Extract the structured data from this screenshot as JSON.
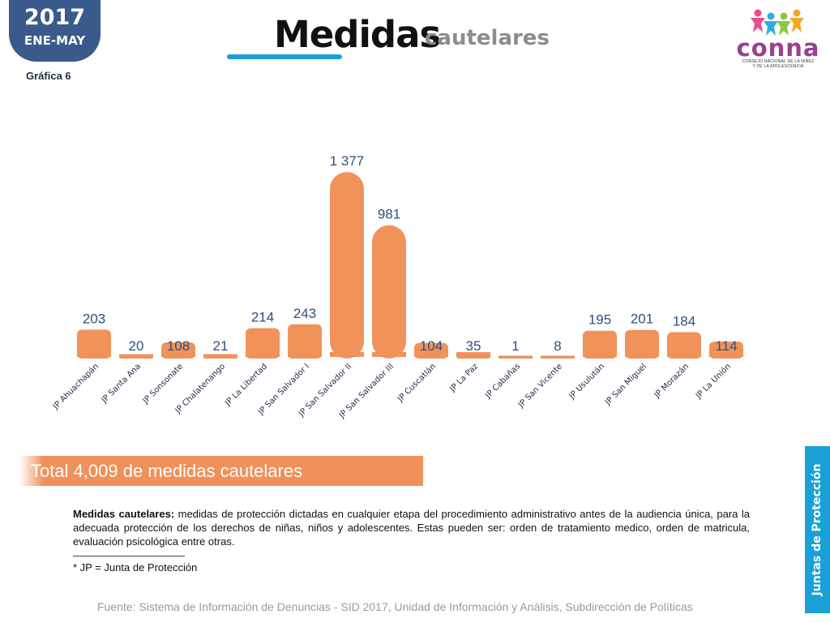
{
  "badge": {
    "year": "2017",
    "period": "ENE-MAY"
  },
  "grafica": "Gráfica 6",
  "title": {
    "main": "Medidas",
    "sub": "cautelares"
  },
  "logo": {
    "word": "conna",
    "line1": "CONSEJO NACIONAL DE LA NIÑEZ",
    "line2": "Y DE LA ADOLESCENCIA",
    "colors": [
      "#e84f8b",
      "#2eaee0",
      "#8dc63f",
      "#f5a623"
    ]
  },
  "chart_data": {
    "type": "bar",
    "categories": [
      "JP Ahuachapán",
      "JP Santa Ana",
      "JP Sonsonate",
      "JP Chalatenango",
      "JP La Libertad",
      "JP San Salvador I",
      "JP San Salvador II",
      "JP San Salvador III",
      "JP Cuscatlán",
      "JP La Paz",
      "JP Cabañas",
      "JP San Vicente",
      "JP Usulután",
      "JP San Miguel",
      "JP Morazán",
      "JP La Unión"
    ],
    "values": [
      203,
      20,
      108,
      21,
      214,
      243,
      1377,
      981,
      104,
      35,
      1,
      8,
      195,
      201,
      184,
      114
    ],
    "value_labels": [
      "203",
      "20",
      "108",
      "21",
      "214",
      "243",
      "1 377",
      "981",
      "104",
      "35",
      "1",
      "8",
      "195",
      "201",
      "184",
      "114"
    ],
    "bar_color": "#f0925a",
    "label_color": "#2f4f7f",
    "ylim": [
      0,
      1450
    ],
    "grid": false
  },
  "total": "Total 4,009 de medidas cautelares",
  "note": {
    "term": "Medidas cautelares:",
    "text": " medidas de protección dictadas en cualquier etapa del procedimiento administrativo antes de la audiencia única, para la adecuada protección de los derechos de niñas, niños y adolescentes. Estas pueden ser: orden de tratamiento medico, orden de matricula, evaluación psicológica entre otras."
  },
  "footnote": "* JP = Junta de Protección",
  "source": "Fuente: Sistema de Información de Denuncias - SID 2017, Unidad de Información y Análisis, Subdirección de Políticas",
  "side_tab": "Juntas de Protección"
}
